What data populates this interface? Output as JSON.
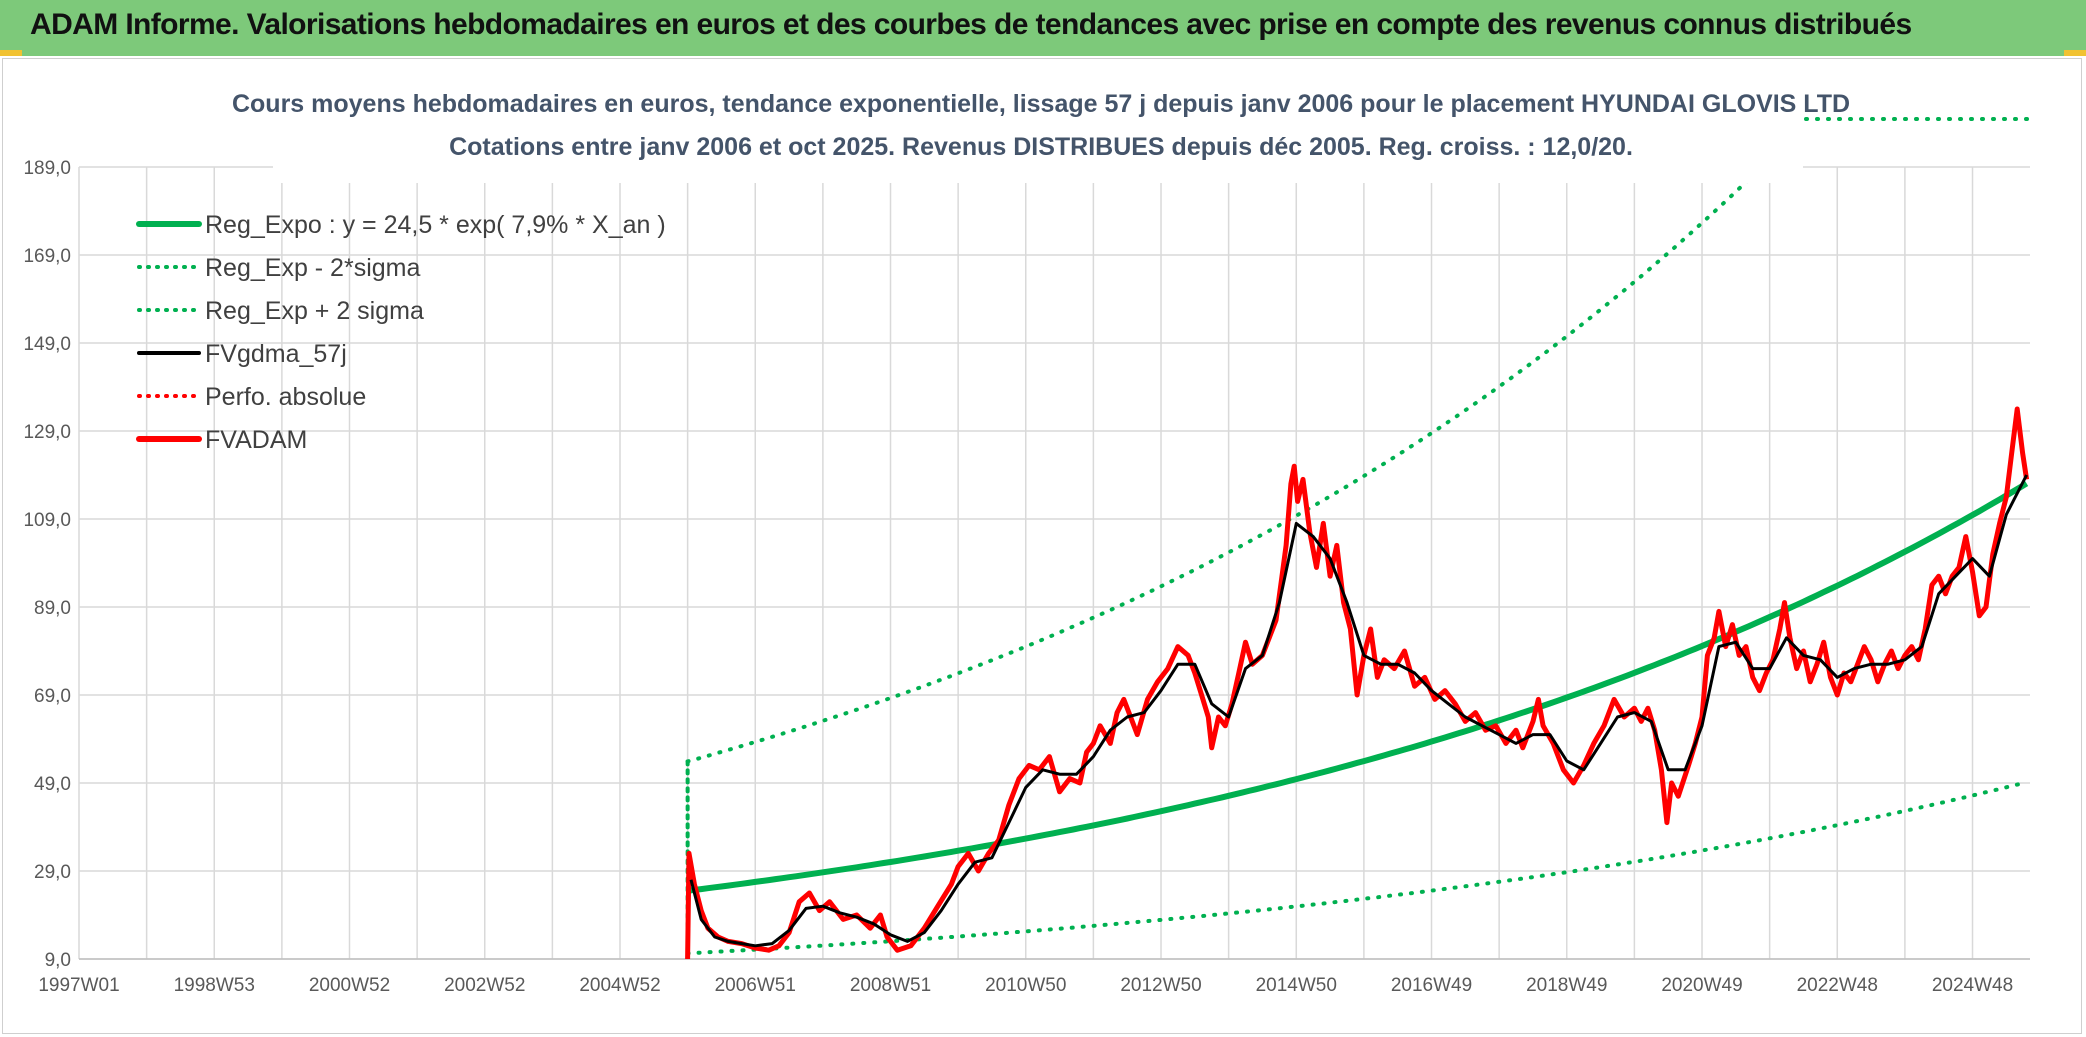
{
  "banner": {
    "title": "ADAM Informe. Valorisations hebdomadaires en euros et des courbes de tendances avec prise en compte des revenus connus distribués",
    "background": "#7dc97a"
  },
  "chart_data": {
    "type": "line",
    "title_line1": "Cours moyens hebdomadaires en euros, tendance exponentielle, lissage 57 j depuis janv 2006 pour le placement HYUNDAI GLOVIS LTD",
    "title_line2": "Cotations entre janv 2006 et oct 2025. Revenus DISTRIBUES depuis déc 2005. Reg. croiss. : 12,0/20.",
    "xlabel": "",
    "ylabel": "",
    "x_range": [
      1997.0,
      2025.85
    ],
    "ylim": [
      9.0,
      189.0
    ],
    "y_ticks": [
      "9,0",
      "29,0",
      "49,0",
      "69,0",
      "89,0",
      "109,0",
      "129,0",
      "149,0",
      "169,0",
      "189,0"
    ],
    "x_ticks": [
      {
        "label": "1997W01",
        "year": 1997.0
      },
      {
        "label": "1998W53",
        "year": 1999.0
      },
      {
        "label": "2000W52",
        "year": 2001.0
      },
      {
        "label": "2002W52",
        "year": 2003.0
      },
      {
        "label": "2004W52",
        "year": 2005.0
      },
      {
        "label": "2006W51",
        "year": 2007.0
      },
      {
        "label": "2008W51",
        "year": 2009.0
      },
      {
        "label": "2010W50",
        "year": 2011.0
      },
      {
        "label": "2012W50",
        "year": 2013.0
      },
      {
        "label": "2014W50",
        "year": 2015.0
      },
      {
        "label": "2016W49",
        "year": 2017.0
      },
      {
        "label": "2018W49",
        "year": 2019.0
      },
      {
        "label": "2020W49",
        "year": 2021.0
      },
      {
        "label": "2022W48",
        "year": 2023.0
      },
      {
        "label": "2024W48",
        "year": 2025.0
      }
    ],
    "grid": true,
    "legend_position": "top-left",
    "legend": [
      {
        "label": "Reg_Expo : y = 24,5 * exp( 7,9% *  X_an )",
        "color": "#00b050",
        "style": "solid-thick"
      },
      {
        "label": "Reg_Exp - 2*sigma",
        "color": "#00b050",
        "style": "dotted"
      },
      {
        "label": "Reg_Exp + 2 sigma",
        "color": "#00b050",
        "style": "dotted"
      },
      {
        "label": "FVgdma_57j",
        "color": "#000000",
        "style": "solid"
      },
      {
        "label": "Perfo. absolue",
        "color": "#ff0000",
        "style": "dotted"
      },
      {
        "label": "FVADAM",
        "color": "#ff0000",
        "style": "solid-thick"
      }
    ],
    "regression": {
      "a": 24.5,
      "rate": 0.079,
      "start_year": 2006.0,
      "end_year": 2025.8,
      "upper_factor": 2.2,
      "lower_factor": 0.42
    },
    "series": [
      {
        "name": "FVADAM",
        "color": "#ff0000",
        "points": [
          [
            2006.0,
            9
          ],
          [
            2006.02,
            33
          ],
          [
            2006.1,
            26
          ],
          [
            2006.2,
            20
          ],
          [
            2006.3,
            16
          ],
          [
            2006.45,
            14
          ],
          [
            2006.6,
            13
          ],
          [
            2006.8,
            12.5
          ],
          [
            2007.0,
            11.5
          ],
          [
            2007.2,
            11
          ],
          [
            2007.35,
            12
          ],
          [
            2007.5,
            15
          ],
          [
            2007.65,
            22
          ],
          [
            2007.8,
            24
          ],
          [
            2007.95,
            20
          ],
          [
            2008.1,
            22
          ],
          [
            2008.3,
            18
          ],
          [
            2008.5,
            19
          ],
          [
            2008.7,
            16
          ],
          [
            2008.85,
            19
          ],
          [
            2008.95,
            14
          ],
          [
            2009.1,
            11
          ],
          [
            2009.3,
            12
          ],
          [
            2009.5,
            16
          ],
          [
            2009.7,
            21
          ],
          [
            2009.9,
            26
          ],
          [
            2010.0,
            30
          ],
          [
            2010.15,
            33
          ],
          [
            2010.3,
            29
          ],
          [
            2010.45,
            33
          ],
          [
            2010.6,
            36
          ],
          [
            2010.75,
            44
          ],
          [
            2010.9,
            50
          ],
          [
            2011.05,
            53
          ],
          [
            2011.2,
            52
          ],
          [
            2011.35,
            55
          ],
          [
            2011.5,
            47
          ],
          [
            2011.65,
            50
          ],
          [
            2011.8,
            49
          ],
          [
            2011.9,
            56
          ],
          [
            2012.0,
            58
          ],
          [
            2012.1,
            62
          ],
          [
            2012.25,
            58
          ],
          [
            2012.35,
            65
          ],
          [
            2012.45,
            68
          ],
          [
            2012.55,
            64
          ],
          [
            2012.65,
            60
          ],
          [
            2012.8,
            68
          ],
          [
            2012.95,
            72
          ],
          [
            2013.1,
            75
          ],
          [
            2013.25,
            80
          ],
          [
            2013.4,
            78
          ],
          [
            2013.5,
            74
          ],
          [
            2013.6,
            69
          ],
          [
            2013.7,
            64
          ],
          [
            2013.75,
            57
          ],
          [
            2013.85,
            64
          ],
          [
            2013.95,
            62
          ],
          [
            2014.05,
            67
          ],
          [
            2014.15,
            74
          ],
          [
            2014.25,
            81
          ],
          [
            2014.35,
            76
          ],
          [
            2014.5,
            78
          ],
          [
            2014.6,
            82
          ],
          [
            2014.7,
            86
          ],
          [
            2014.78,
            95
          ],
          [
            2014.85,
            103
          ],
          [
            2014.92,
            117
          ],
          [
            2014.97,
            121
          ],
          [
            2015.02,
            113
          ],
          [
            2015.1,
            118
          ],
          [
            2015.2,
            106
          ],
          [
            2015.3,
            98
          ],
          [
            2015.4,
            108
          ],
          [
            2015.5,
            96
          ],
          [
            2015.6,
            103
          ],
          [
            2015.7,
            90
          ],
          [
            2015.8,
            84
          ],
          [
            2015.9,
            69
          ],
          [
            2016.0,
            78
          ],
          [
            2016.1,
            84
          ],
          [
            2016.2,
            73
          ],
          [
            2016.3,
            77
          ],
          [
            2016.45,
            75
          ],
          [
            2016.6,
            79
          ],
          [
            2016.75,
            71
          ],
          [
            2016.9,
            73
          ],
          [
            2017.05,
            68
          ],
          [
            2017.2,
            70
          ],
          [
            2017.35,
            67
          ],
          [
            2017.5,
            63
          ],
          [
            2017.65,
            65
          ],
          [
            2017.8,
            61
          ],
          [
            2017.95,
            62
          ],
          [
            2018.1,
            58
          ],
          [
            2018.25,
            61
          ],
          [
            2018.35,
            57
          ],
          [
            2018.5,
            63
          ],
          [
            2018.58,
            68
          ],
          [
            2018.65,
            62
          ],
          [
            2018.8,
            58
          ],
          [
            2018.95,
            52
          ],
          [
            2019.1,
            49
          ],
          [
            2019.25,
            53
          ],
          [
            2019.4,
            58
          ],
          [
            2019.55,
            62
          ],
          [
            2019.7,
            68
          ],
          [
            2019.85,
            64
          ],
          [
            2020.0,
            66
          ],
          [
            2020.1,
            63
          ],
          [
            2020.2,
            66
          ],
          [
            2020.3,
            61
          ],
          [
            2020.4,
            52
          ],
          [
            2020.48,
            40
          ],
          [
            2020.55,
            49
          ],
          [
            2020.65,
            46
          ],
          [
            2020.8,
            53
          ],
          [
            2020.9,
            58
          ],
          [
            2021.0,
            64
          ],
          [
            2021.08,
            78
          ],
          [
            2021.18,
            82
          ],
          [
            2021.25,
            88
          ],
          [
            2021.35,
            80
          ],
          [
            2021.45,
            85
          ],
          [
            2021.55,
            78
          ],
          [
            2021.65,
            80
          ],
          [
            2021.75,
            73
          ],
          [
            2021.85,
            70
          ],
          [
            2021.95,
            74
          ],
          [
            2022.05,
            77
          ],
          [
            2022.15,
            84
          ],
          [
            2022.22,
            90
          ],
          [
            2022.3,
            82
          ],
          [
            2022.4,
            75
          ],
          [
            2022.5,
            79
          ],
          [
            2022.6,
            72
          ],
          [
            2022.7,
            76
          ],
          [
            2022.8,
            81
          ],
          [
            2022.9,
            73
          ],
          [
            2023.0,
            69
          ],
          [
            2023.1,
            74
          ],
          [
            2023.2,
            72
          ],
          [
            2023.3,
            76
          ],
          [
            2023.4,
            80
          ],
          [
            2023.5,
            77
          ],
          [
            2023.6,
            72
          ],
          [
            2023.7,
            76
          ],
          [
            2023.8,
            79
          ],
          [
            2023.9,
            75
          ],
          [
            2024.0,
            78
          ],
          [
            2024.1,
            80
          ],
          [
            2024.2,
            77
          ],
          [
            2024.3,
            84
          ],
          [
            2024.4,
            94
          ],
          [
            2024.5,
            96
          ],
          [
            2024.6,
            92
          ],
          [
            2024.7,
            96
          ],
          [
            2024.8,
            98
          ],
          [
            2024.9,
            105
          ],
          [
            2025.0,
            97
          ],
          [
            2025.1,
            87
          ],
          [
            2025.2,
            89
          ],
          [
            2025.3,
            101
          ],
          [
            2025.4,
            108
          ],
          [
            2025.5,
            114
          ],
          [
            2025.58,
            124
          ],
          [
            2025.66,
            134
          ],
          [
            2025.74,
            124
          ],
          [
            2025.8,
            118
          ]
        ]
      },
      {
        "name": "FVgdma_57j",
        "color": "#000000",
        "points": [
          [
            2006.05,
            27
          ],
          [
            2006.2,
            18
          ],
          [
            2006.4,
            14
          ],
          [
            2006.6,
            13
          ],
          [
            2006.8,
            12.5
          ],
          [
            2007.0,
            12
          ],
          [
            2007.25,
            12.5
          ],
          [
            2007.5,
            15.5
          ],
          [
            2007.75,
            20.5
          ],
          [
            2008.0,
            21
          ],
          [
            2008.25,
            19.5
          ],
          [
            2008.5,
            18.5
          ],
          [
            2008.75,
            17
          ],
          [
            2009.0,
            14.5
          ],
          [
            2009.25,
            13
          ],
          [
            2009.5,
            15
          ],
          [
            2009.75,
            20
          ],
          [
            2010.0,
            26
          ],
          [
            2010.25,
            31
          ],
          [
            2010.5,
            32
          ],
          [
            2010.75,
            40
          ],
          [
            2011.0,
            48
          ],
          [
            2011.25,
            52
          ],
          [
            2011.5,
            51
          ],
          [
            2011.75,
            51
          ],
          [
            2012.0,
            55
          ],
          [
            2012.25,
            61
          ],
          [
            2012.5,
            64
          ],
          [
            2012.75,
            65
          ],
          [
            2013.0,
            70
          ],
          [
            2013.25,
            76
          ],
          [
            2013.5,
            76
          ],
          [
            2013.75,
            67
          ],
          [
            2014.0,
            64
          ],
          [
            2014.25,
            75
          ],
          [
            2014.5,
            78
          ],
          [
            2014.75,
            90
          ],
          [
            2015.0,
            108
          ],
          [
            2015.25,
            105
          ],
          [
            2015.5,
            100
          ],
          [
            2015.75,
            90
          ],
          [
            2016.0,
            78
          ],
          [
            2016.25,
            76
          ],
          [
            2016.5,
            76
          ],
          [
            2016.75,
            74
          ],
          [
            2017.0,
            70
          ],
          [
            2017.25,
            67
          ],
          [
            2017.5,
            64
          ],
          [
            2017.75,
            62
          ],
          [
            2018.0,
            60
          ],
          [
            2018.25,
            58
          ],
          [
            2018.5,
            60
          ],
          [
            2018.75,
            60
          ],
          [
            2019.0,
            54
          ],
          [
            2019.25,
            52
          ],
          [
            2019.5,
            58
          ],
          [
            2019.75,
            64
          ],
          [
            2020.0,
            65
          ],
          [
            2020.25,
            63
          ],
          [
            2020.5,
            52
          ],
          [
            2020.75,
            52
          ],
          [
            2021.0,
            62
          ],
          [
            2021.25,
            80
          ],
          [
            2021.5,
            81
          ],
          [
            2021.75,
            75
          ],
          [
            2022.0,
            75
          ],
          [
            2022.25,
            82
          ],
          [
            2022.5,
            78
          ],
          [
            2022.75,
            77
          ],
          [
            2023.0,
            73
          ],
          [
            2023.25,
            75
          ],
          [
            2023.5,
            76
          ],
          [
            2023.75,
            76
          ],
          [
            2024.0,
            77
          ],
          [
            2024.25,
            80
          ],
          [
            2024.5,
            92
          ],
          [
            2024.75,
            96
          ],
          [
            2025.0,
            100
          ],
          [
            2025.25,
            96
          ],
          [
            2025.5,
            110
          ],
          [
            2025.8,
            119
          ]
        ]
      }
    ]
  }
}
